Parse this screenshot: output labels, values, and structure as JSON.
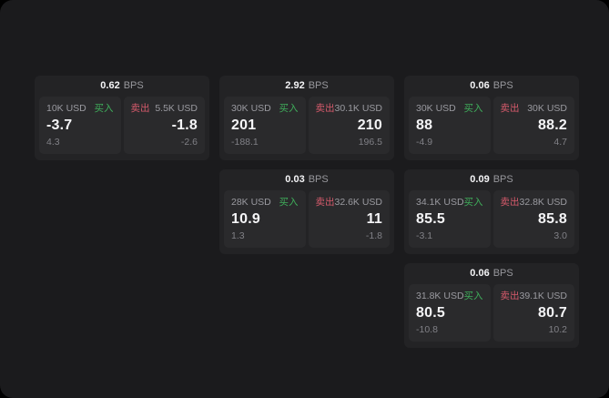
{
  "labels": {
    "buy": "买入",
    "sell": "卖出",
    "bps_unit": "BPS"
  },
  "colors": {
    "outer": "#000000",
    "page": "#1b1b1d",
    "card": "#232325",
    "panel": "#2a2a2c",
    "value": "#f5f5f7",
    "label": "#9a9aa0",
    "sub": "#808086",
    "bps": "#98989d",
    "buy": "#3fae5b",
    "sell": "#d65a6b"
  },
  "cards": [
    {
      "row": 1,
      "col": 1,
      "bps": "0.62",
      "buy": {
        "amount": "10K USD",
        "value": "-3.7",
        "sub": "4.3"
      },
      "sell": {
        "amount": "5.5K USD",
        "value": "-1.8",
        "sub": "-2.6"
      }
    },
    {
      "row": 1,
      "col": 2,
      "bps": "2.92",
      "buy": {
        "amount": "30K USD",
        "value": "201",
        "sub": "-188.1"
      },
      "sell": {
        "amount": "30.1K USD",
        "value": "210",
        "sub": "196.5"
      }
    },
    {
      "row": 1,
      "col": 3,
      "bps": "0.06",
      "buy": {
        "amount": "30K USD",
        "value": "88",
        "sub": "-4.9"
      },
      "sell": {
        "amount": "30K USD",
        "value": "88.2",
        "sub": "4.7"
      }
    },
    {
      "row": 2,
      "col": 2,
      "bps": "0.03",
      "buy": {
        "amount": "28K USD",
        "value": "10.9",
        "sub": "1.3"
      },
      "sell": {
        "amount": "32.6K USD",
        "value": "11",
        "sub": "-1.8"
      }
    },
    {
      "row": 2,
      "col": 3,
      "bps": "0.09",
      "buy": {
        "amount": "34.1K USD",
        "value": "85.5",
        "sub": "-3.1"
      },
      "sell": {
        "amount": "32.8K USD",
        "value": "85.8",
        "sub": "3.0"
      }
    },
    {
      "row": 3,
      "col": 3,
      "bps": "0.06",
      "buy": {
        "amount": "31.8K USD",
        "value": "80.5",
        "sub": "-10.8"
      },
      "sell": {
        "amount": "39.1K USD",
        "value": "80.7",
        "sub": "10.2"
      }
    }
  ]
}
